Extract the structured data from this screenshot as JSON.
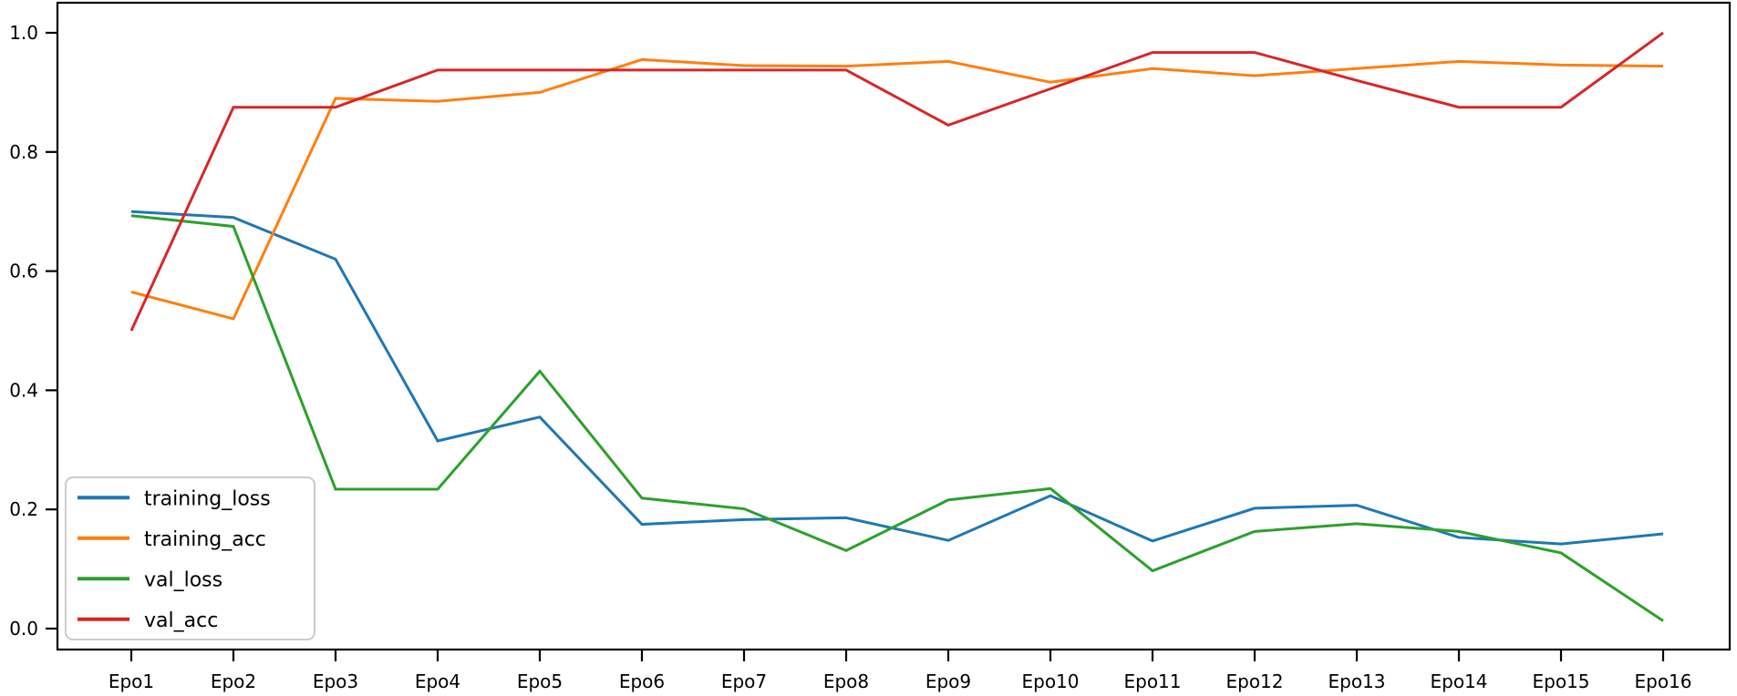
{
  "figure": {
    "background_color": "#ffffff",
    "axis_color": "#000000",
    "legend_border_color": "#cccccc"
  },
  "chart_data": {
    "type": "line",
    "title": "",
    "xlabel": "",
    "ylabel": "",
    "grid": false,
    "legend_position": "lower left",
    "categories": [
      "Epo1",
      "Epo2",
      "Epo3",
      "Epo4",
      "Epo5",
      "Epo6",
      "Epo7",
      "Epo8",
      "Epo9",
      "Epo10",
      "Epo11",
      "Epo12",
      "Epo13",
      "Epo14",
      "Epo15",
      "Epo16"
    ],
    "y_tick_labels": [
      "0.0",
      "0.2",
      "0.4",
      "0.6",
      "0.8",
      "1.0"
    ],
    "y_ticks": [
      0.0,
      0.2,
      0.4,
      0.6,
      0.8,
      1.0
    ],
    "ylim": [
      -0.035,
      1.05
    ],
    "series": [
      {
        "name": "training_loss",
        "color": "#1f77b4",
        "values": [
          0.7,
          0.69,
          0.62,
          0.315,
          0.355,
          0.175,
          0.183,
          0.186,
          0.148,
          0.223,
          0.147,
          0.202,
          0.207,
          0.153,
          0.142,
          0.159
        ]
      },
      {
        "name": "training_acc",
        "color": "#ff7f0e",
        "values": [
          0.565,
          0.52,
          0.89,
          0.885,
          0.9,
          0.955,
          0.945,
          0.944,
          0.952,
          0.917,
          0.94,
          0.928,
          0.94,
          0.952,
          0.946,
          0.944
        ]
      },
      {
        "name": "val_loss",
        "color": "#2ca02c",
        "values": [
          0.693,
          0.675,
          0.234,
          0.234,
          0.432,
          0.219,
          0.201,
          0.131,
          0.216,
          0.235,
          0.097,
          0.163,
          0.176,
          0.163,
          0.127,
          0.013
        ]
      },
      {
        "name": "val_acc",
        "color": "#d62728",
        "values": [
          0.5,
          0.875,
          0.875,
          0.9375,
          0.9375,
          0.9375,
          0.9375,
          0.9375,
          0.845,
          0.906,
          0.967,
          0.967,
          0.92,
          0.875,
          0.875,
          1.0
        ]
      }
    ]
  }
}
